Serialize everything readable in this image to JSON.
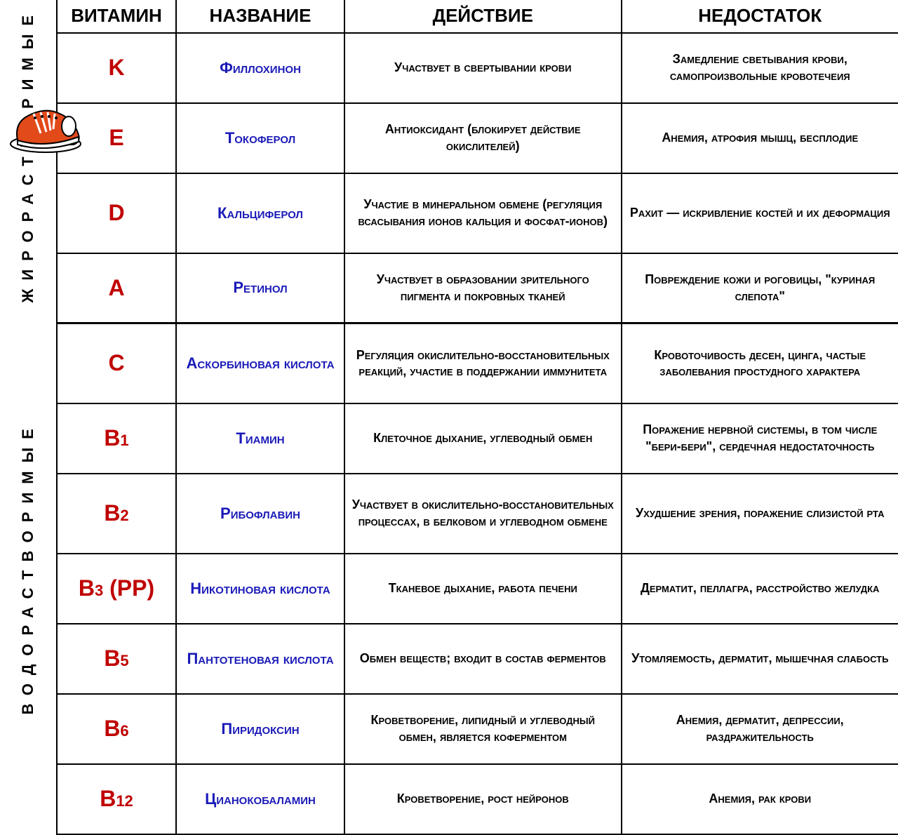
{
  "side_labels": {
    "fat": "ЖИРОРАСТВОРИМЫЕ",
    "water": "ВОДОРАСТВОРИМЫЕ"
  },
  "headers": {
    "vitamin": "ВИТАМИН",
    "name": "НАЗВАНИЕ",
    "action": "ДЕЙСТВИЕ",
    "deficiency": "НЕДОСТАТОК"
  },
  "colors": {
    "vitamin_text": "#c00000",
    "name_text": "#1a1ab8",
    "desc_text": "#000000",
    "border": "#000000",
    "background": "#ffffff"
  },
  "font_sizes": {
    "header": 26,
    "vitamin": 32,
    "name": 22,
    "desc": 18,
    "side_label": 22
  },
  "rows": [
    {
      "group": "fat",
      "vitamin": "K",
      "name": "Филлохинон",
      "action": "Участвует в свертывании крови",
      "deficiency": "Замедление светывания крови, самопроизвольные кровотечеия"
    },
    {
      "group": "fat",
      "vitamin": "E",
      "name": "Токоферол",
      "action": "Антиоксидант (блокирует действие окислителей)",
      "deficiency": "Анемия, атрофия мышц, бесплодие"
    },
    {
      "group": "fat",
      "vitamin": "D",
      "name": "Кальциферол",
      "action": "Участие в минеральном обмене (регуляция всасывания ионов кальция и фосфат-ионов)",
      "deficiency": "Рахит — искривление костей и их деформация"
    },
    {
      "group": "fat",
      "vitamin": "A",
      "name": "Ретинол",
      "action": "Участвует в образовании зрительного пигмента и покровных тканей",
      "deficiency": "Повреждение кожи и роговицы, \"куриная слепота\""
    },
    {
      "group": "water",
      "vitamin": "C",
      "name": "Аскорбиновая кислота",
      "action": "Регуляция окислительно-восстановительных реакций, участие в поддержании иммунитета",
      "deficiency": "Кровоточивость десен, цинга, частые заболевания простудного характера"
    },
    {
      "group": "water",
      "vitamin": "B1",
      "vitamin_html": "B<span class='sub'>1</span>",
      "name": "Тиамин",
      "action": "Клеточное дыхание, углеводный обмен",
      "deficiency": "Поражение нервной системы, в том числе \"бери-бери\", сердечная недостаточность"
    },
    {
      "group": "water",
      "vitamin": "B2",
      "vitamin_html": "B<span class='sub'>2</span>",
      "name": "Рибофлавин",
      "action": "Участвует в окислительно-восстановительных процессах, в белковом и углеводном обмене",
      "deficiency": "Ухудшение зрения, поражение слизистой рта"
    },
    {
      "group": "water",
      "vitamin": "B3 (PP)",
      "vitamin_html": "B<span class='sub'>3</span> (PP)",
      "name": "Никотиновая кислота",
      "action": "Тканевое дыхание, работа печени",
      "deficiency": "Дерматит, пеллагра, расстройство желудка"
    },
    {
      "group": "water",
      "vitamin": "B5",
      "vitamin_html": "B<span class='sub'>5</span>",
      "name": "Пантотеновая кислота",
      "action": "Обмен веществ; входит в состав ферментов",
      "deficiency": "Утомляемость, дерматит, мышечная слабость"
    },
    {
      "group": "water",
      "vitamin": "B6",
      "vitamin_html": "B<span class='sub'>6</span>",
      "name": "Пиридоксин",
      "action": "Кроветворение, липидный и углеводный обмен, является коферментом",
      "deficiency": "Анемия, дерматит, депрессии, раздражительность"
    },
    {
      "group": "water",
      "vitamin": "B12",
      "vitamin_html": "B<span class='sub'>12</span>",
      "name": "Цианокобаламин",
      "action": "Кроветворение, рост нейронов",
      "deficiency": "Анемия, рак крови"
    }
  ]
}
